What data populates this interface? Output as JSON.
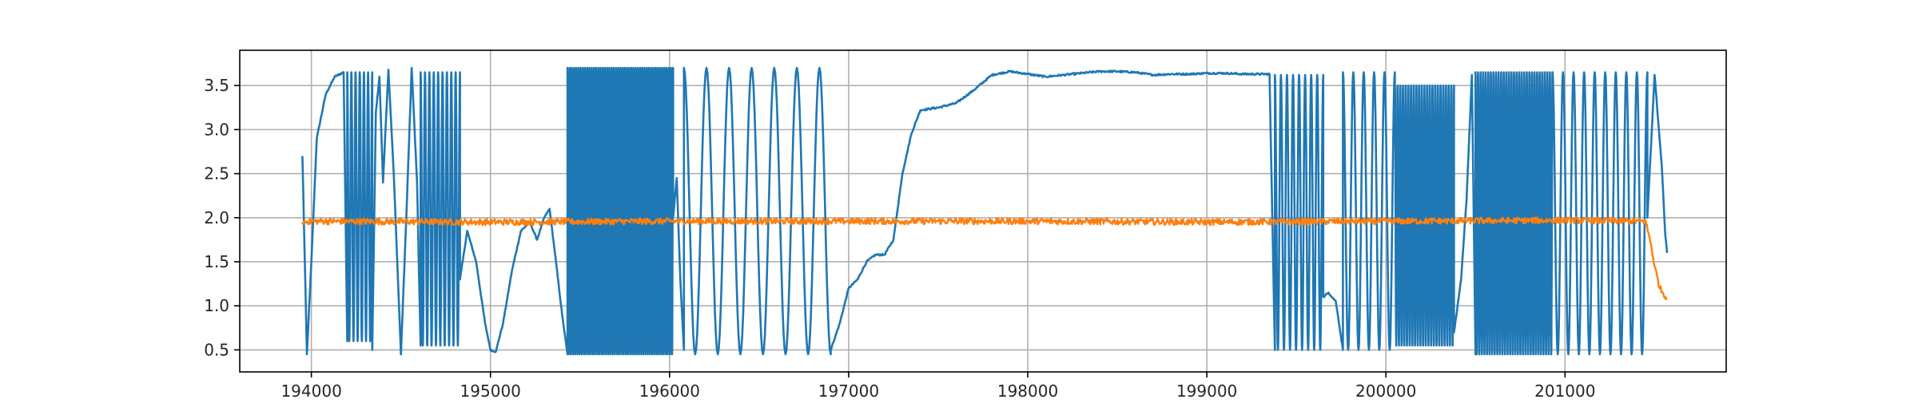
{
  "chart_data": {
    "type": "line",
    "title": "",
    "xlabel": "",
    "ylabel": "",
    "xlim": [
      193600,
      201900
    ],
    "ylim": [
      0.25,
      3.9
    ],
    "grid": true,
    "legend": "none",
    "x_ticks": [
      194000,
      195000,
      196000,
      197000,
      198000,
      199000,
      200000,
      201000
    ],
    "y_ticks": [
      0.5,
      1.0,
      1.5,
      2.0,
      2.5,
      3.0,
      3.5
    ],
    "x_tick_labels": [
      "194000",
      "195000",
      "196000",
      "197000",
      "198000",
      "199000",
      "200000",
      "201000"
    ],
    "y_tick_labels": [
      "0.5",
      "1.0",
      "1.5",
      "2.0",
      "2.5",
      "3.0",
      "3.5"
    ],
    "series": [
      {
        "color": "#1f77b4",
        "segments": [
          {
            "mode": "line",
            "points": [
              [
                193950,
                2.7
              ],
              [
                193975,
                0.45
              ],
              [
                194000,
                1.5
              ],
              [
                194030,
                2.9
              ],
              [
                194080,
                3.4
              ],
              [
                194130,
                3.6
              ],
              [
                194180,
                3.65
              ],
              [
                194200,
                0.6
              ]
            ]
          },
          {
            "mode": "osc",
            "x0": 194200,
            "x1": 194340,
            "cycles": 6,
            "lo": 0.6,
            "hi": 3.65
          },
          {
            "mode": "line",
            "points": [
              [
                194340,
                0.5
              ],
              [
                194360,
                3.2
              ],
              [
                194380,
                3.6
              ],
              [
                194400,
                2.4
              ],
              [
                194430,
                3.68
              ],
              [
                194460,
                2.5
              ],
              [
                194500,
                0.45
              ],
              [
                194530,
                2.0
              ],
              [
                194560,
                3.7
              ],
              [
                194590,
                2.4
              ],
              [
                194610,
                0.55
              ]
            ]
          },
          {
            "mode": "osc",
            "x0": 194610,
            "x1": 194830,
            "cycles": 9,
            "lo": 0.55,
            "hi": 3.65
          },
          {
            "mode": "line",
            "points": [
              [
                194830,
                1.3
              ],
              [
                194870,
                1.85
              ],
              [
                194920,
                1.5
              ],
              [
                194970,
                0.8
              ],
              [
                195000,
                0.5
              ],
              [
                195030,
                0.48
              ],
              [
                195070,
                0.8
              ],
              [
                195120,
                1.4
              ],
              [
                195170,
                1.85
              ],
              [
                195220,
                1.95
              ],
              [
                195260,
                1.75
              ],
              [
                195300,
                2.0
              ],
              [
                195330,
                2.1
              ],
              [
                195360,
                1.6
              ],
              [
                195400,
                0.9
              ],
              [
                195430,
                0.45
              ]
            ]
          },
          {
            "mode": "osc",
            "x0": 195430,
            "x1": 196020,
            "cycles": 48,
            "lo": 0.45,
            "hi": 3.7
          },
          {
            "mode": "line",
            "points": [
              [
                196020,
                2.0
              ],
              [
                196040,
                2.45
              ],
              [
                196060,
                1.3
              ],
              [
                196080,
                0.5
              ]
            ]
          },
          {
            "mode": "osc",
            "x0": 196080,
            "x1": 196900,
            "cycles": 6.5,
            "lo": 0.45,
            "hi": 3.7
          },
          {
            "mode": "line",
            "points": [
              [
                196900,
                0.5
              ],
              [
                196950,
                0.8
              ],
              [
                197000,
                1.2
              ],
              [
                197050,
                1.3
              ],
              [
                197100,
                1.5
              ],
              [
                197150,
                1.58
              ],
              [
                197200,
                1.58
              ],
              [
                197250,
                1.75
              ],
              [
                197300,
                2.5
              ],
              [
                197350,
                2.95
              ],
              [
                197400,
                3.22
              ],
              [
                197500,
                3.25
              ],
              [
                197600,
                3.3
              ],
              [
                197700,
                3.45
              ],
              [
                197800,
                3.62
              ],
              [
                197900,
                3.66
              ],
              [
                198000,
                3.63
              ],
              [
                198100,
                3.6
              ],
              [
                198200,
                3.62
              ],
              [
                198300,
                3.64
              ],
              [
                198400,
                3.66
              ],
              [
                198500,
                3.66
              ],
              [
                198600,
                3.65
              ],
              [
                198700,
                3.62
              ],
              [
                198800,
                3.63
              ],
              [
                198900,
                3.63
              ],
              [
                199000,
                3.64
              ],
              [
                199100,
                3.64
              ],
              [
                199200,
                3.63
              ],
              [
                199350,
                3.63
              ],
              [
                199380,
                0.5
              ]
            ]
          },
          {
            "mode": "osc",
            "x0": 199380,
            "x1": 199650,
            "cycles": 8,
            "lo": 0.5,
            "hi": 3.62
          },
          {
            "mode": "line",
            "points": [
              [
                199650,
                1.1
              ],
              [
                199680,
                1.15
              ],
              [
                199720,
                1.05
              ],
              [
                199760,
                0.5
              ]
            ]
          },
          {
            "mode": "osc",
            "x0": 199760,
            "x1": 200050,
            "cycles": 5,
            "lo": 0.5,
            "hi": 3.65
          },
          {
            "mode": "osc",
            "x0": 200050,
            "x1": 200380,
            "cycles": 22,
            "lo": 0.55,
            "hi": 3.5
          },
          {
            "mode": "line",
            "points": [
              [
                200380,
                0.7
              ],
              [
                200420,
                1.3
              ],
              [
                200450,
                2.2
              ],
              [
                200480,
                3.62
              ],
              [
                200500,
                0.45
              ]
            ]
          },
          {
            "mode": "osc",
            "x0": 200500,
            "x1": 200930,
            "cycles": 30,
            "lo": 0.45,
            "hi": 3.65
          },
          {
            "mode": "osc",
            "x0": 200930,
            "x1": 201460,
            "cycles": 9,
            "lo": 0.45,
            "hi": 3.65
          },
          {
            "mode": "line",
            "points": [
              [
                201460,
                2.0
              ],
              [
                201500,
                3.62
              ],
              [
                201540,
                2.6
              ],
              [
                201560,
                1.8
              ],
              [
                201570,
                1.6
              ]
            ]
          }
        ]
      },
      {
        "color": "#ff7f0e",
        "segments": [
          {
            "mode": "line",
            "points": [
              [
                193950,
                1.95
              ],
              [
                194000,
                1.96
              ],
              [
                195000,
                1.95
              ],
              [
                196000,
                1.96
              ],
              [
                197000,
                1.96
              ],
              [
                198000,
                1.96
              ],
              [
                199000,
                1.95
              ],
              [
                200000,
                1.96
              ],
              [
                201000,
                1.97
              ],
              [
                201450,
                1.96
              ],
              [
                201480,
                1.7
              ],
              [
                201500,
                1.45
              ],
              [
                201530,
                1.2
              ],
              [
                201570,
                1.08
              ]
            ]
          }
        ]
      }
    ]
  }
}
